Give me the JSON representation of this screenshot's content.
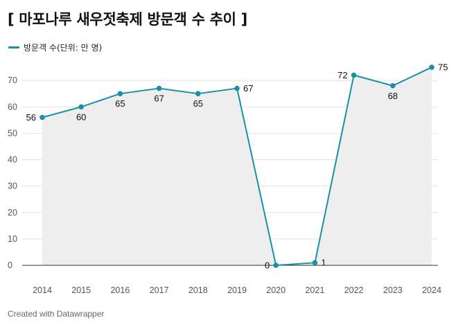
{
  "title": "[ 마포나루 새우젓축제 방문객 수 추이 ]",
  "footer": "Created with Datawrapper",
  "colors": {
    "line": "#1a8fa8",
    "area": "#eeeeee",
    "grid": "#e2e2e2"
  },
  "chart_data": {
    "type": "line",
    "categories": [
      "2014",
      "2015",
      "2016",
      "2017",
      "2018",
      "2019",
      "2020",
      "2021",
      "2022",
      "2023",
      "2024"
    ],
    "series": [
      {
        "name": "방문객 수(단위: 만 명)",
        "values": [
          56,
          60,
          65,
          67,
          65,
          67,
          0,
          1,
          72,
          68,
          75
        ],
        "labels": [
          "56",
          "60",
          "65",
          "67",
          "65",
          "67",
          "0",
          "1",
          "72",
          "68",
          "75"
        ]
      }
    ],
    "y_ticks": [
      "0",
      "10",
      "20",
      "30",
      "40",
      "50",
      "60",
      "70"
    ],
    "ylim": [
      0,
      80
    ],
    "grid": true,
    "area_fill": true,
    "legend_position": "top-left"
  }
}
